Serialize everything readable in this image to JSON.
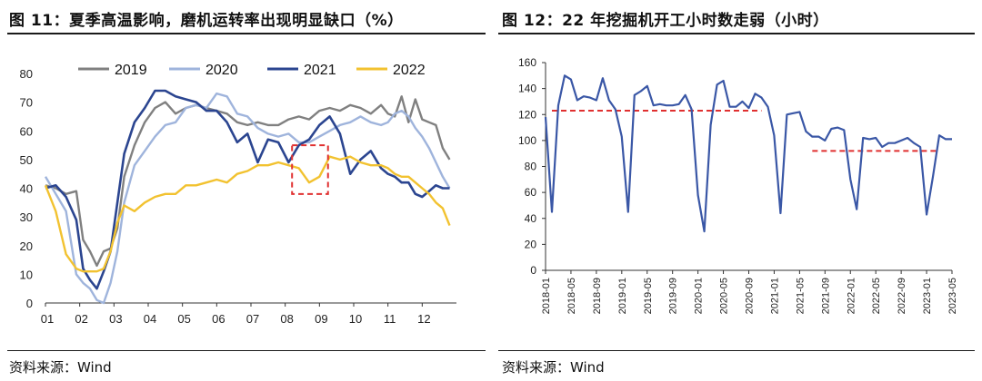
{
  "left": {
    "title": "图 11：夏季高温影响，磨机运转率出现明显缺口（%）",
    "source": "资料来源：Wind"
  },
  "right": {
    "title": "图 12：22 年挖掘机开工小时数走弱（小时）",
    "source": "资料来源：Wind"
  },
  "chart_data": [
    {
      "type": "line",
      "title": "",
      "ylim": [
        0,
        80
      ],
      "yticks": [
        0,
        10,
        20,
        30,
        40,
        50,
        60,
        70,
        80
      ],
      "xlim": [
        1,
        13
      ],
      "xtick_labels": [
        "01",
        "02",
        "03",
        "04",
        "05",
        "06",
        "07",
        "08",
        "09",
        "10",
        "11",
        "12"
      ],
      "legend_position": "top",
      "annotation": {
        "type": "dashed-box",
        "x_from": 8.2,
        "x_to": 9.25,
        "y_from": 38,
        "y_to": 55,
        "color": "#e03030"
      },
      "series": [
        {
          "name": "2019",
          "color": "#808080",
          "x": [
            1.0,
            1.3,
            1.6,
            1.9,
            2.1,
            2.3,
            2.5,
            2.7,
            2.9,
            3.1,
            3.3,
            3.6,
            3.9,
            4.2,
            4.5,
            4.8,
            5.1,
            5.4,
            5.7,
            6.0,
            6.3,
            6.6,
            6.9,
            7.2,
            7.5,
            7.8,
            8.1,
            8.4,
            8.7,
            9.0,
            9.3,
            9.6,
            9.9,
            10.2,
            10.5,
            10.8,
            11.0,
            11.2,
            11.4,
            11.6,
            11.8,
            12.0,
            12.2,
            12.4,
            12.6,
            12.8
          ],
          "values": [
            41,
            40,
            38,
            39,
            22,
            18,
            13,
            18,
            19,
            26,
            44,
            55,
            63,
            68,
            70,
            66,
            68,
            69,
            68,
            67,
            66,
            63,
            62,
            63,
            62,
            62,
            64,
            65,
            64,
            67,
            68,
            67,
            69,
            68,
            66,
            69,
            66,
            65,
            72,
            63,
            71,
            64,
            63,
            62,
            54,
            50
          ]
        },
        {
          "name": "2020",
          "color": "#9fb4dc",
          "x": [
            1.0,
            1.3,
            1.6,
            1.9,
            2.1,
            2.3,
            2.5,
            2.7,
            2.9,
            3.1,
            3.3,
            3.6,
            3.9,
            4.2,
            4.5,
            4.8,
            5.1,
            5.4,
            5.7,
            6.0,
            6.3,
            6.6,
            6.9,
            7.2,
            7.5,
            7.8,
            8.1,
            8.4,
            8.7,
            9.0,
            9.3,
            9.6,
            9.9,
            10.2,
            10.5,
            10.8,
            11.0,
            11.2,
            11.4,
            11.6,
            11.8,
            12.0,
            12.2,
            12.4,
            12.6,
            12.8
          ],
          "values": [
            44,
            38,
            32,
            10,
            7,
            5,
            1,
            0,
            7,
            18,
            35,
            48,
            53,
            58,
            62,
            63,
            68,
            69,
            68,
            73,
            72,
            66,
            65,
            61,
            59,
            58,
            59,
            56,
            56,
            58,
            60,
            62,
            63,
            65,
            63,
            62,
            63,
            66,
            67,
            65,
            61,
            58,
            54,
            49,
            44,
            40
          ]
        },
        {
          "name": "2021",
          "color": "#2b4590",
          "x": [
            1.0,
            1.3,
            1.6,
            1.9,
            2.1,
            2.3,
            2.5,
            2.7,
            2.9,
            3.1,
            3.3,
            3.6,
            3.9,
            4.2,
            4.5,
            4.8,
            5.1,
            5.4,
            5.7,
            6.0,
            6.3,
            6.6,
            6.9,
            7.2,
            7.5,
            7.8,
            8.1,
            8.4,
            8.7,
            9.0,
            9.3,
            9.6,
            9.9,
            10.2,
            10.5,
            10.8,
            11.0,
            11.2,
            11.4,
            11.6,
            11.8,
            12.0,
            12.2,
            12.4,
            12.6,
            12.8
          ],
          "values": [
            40,
            41,
            37,
            29,
            12,
            8,
            5,
            11,
            18,
            35,
            52,
            63,
            68,
            74,
            74,
            72,
            71,
            70,
            67,
            67,
            63,
            56,
            59,
            49,
            57,
            56,
            49,
            55,
            57,
            62,
            65,
            59,
            45,
            50,
            53,
            47,
            45,
            44,
            42,
            42,
            38,
            37,
            39,
            41,
            40,
            40
          ]
        },
        {
          "name": "2022",
          "color": "#f2c230",
          "x": [
            1.0,
            1.3,
            1.6,
            1.9,
            2.1,
            2.3,
            2.5,
            2.7,
            2.9,
            3.1,
            3.3,
            3.6,
            3.9,
            4.2,
            4.5,
            4.8,
            5.1,
            5.4,
            5.7,
            6.0,
            6.3,
            6.6,
            6.9,
            7.2,
            7.5,
            7.8,
            8.1,
            8.4,
            8.7,
            9.0,
            9.3,
            9.6,
            9.9,
            10.2,
            10.5,
            10.8,
            11.0,
            11.2,
            11.4,
            11.6,
            11.8,
            12.0,
            12.2,
            12.4,
            12.6,
            12.8
          ],
          "values": [
            41,
            32,
            17,
            12,
            11,
            11,
            11,
            12,
            18,
            28,
            34,
            32,
            35,
            37,
            38,
            38,
            41,
            41,
            42,
            43,
            42,
            45,
            46,
            48,
            48,
            49,
            48,
            47,
            42,
            44,
            51,
            50,
            51,
            49,
            48,
            48,
            47,
            45,
            44,
            44,
            42,
            40,
            38,
            35,
            33,
            27
          ]
        }
      ]
    },
    {
      "type": "line",
      "title": "",
      "ylim": [
        0,
        160
      ],
      "yticks": [
        0,
        20,
        40,
        60,
        80,
        100,
        120,
        140,
        160
      ],
      "xtick_labels": [
        "2018-01",
        "2018-05",
        "2018-09",
        "2019-01",
        "2019-05",
        "2019-09",
        "2020-01",
        "2020-05",
        "2020-09",
        "2021-01",
        "2021-05",
        "2021-09",
        "2022-01",
        "2022-05",
        "2022-09",
        "2023-01",
        "2023-05"
      ],
      "x_start": "2018-01",
      "reference_lines": [
        {
          "from": "2018-02",
          "to": "2020-11",
          "value": 123,
          "color": "#e03030",
          "style": "dashed"
        },
        {
          "from": "2021-07",
          "to": "2023-03",
          "value": 92,
          "color": "#e03030",
          "style": "dashed"
        }
      ],
      "series": [
        {
          "name": "挖掘机开工小时数",
          "color": "#3a57a6",
          "values": [
            118,
            45,
            127,
            150,
            147,
            131,
            134,
            133,
            131,
            148,
            131,
            124,
            103,
            45,
            135,
            138,
            142,
            127,
            128,
            127,
            127,
            128,
            135,
            124,
            58,
            30,
            112,
            143,
            146,
            126,
            126,
            130,
            125,
            136,
            133,
            126,
            104,
            44,
            120,
            121,
            122,
            107,
            103,
            103,
            100,
            109,
            110,
            108,
            70,
            47,
            102,
            101,
            102,
            95,
            98,
            98,
            100,
            102,
            98,
            95,
            43,
            72,
            104,
            101,
            101
          ]
        }
      ]
    }
  ]
}
